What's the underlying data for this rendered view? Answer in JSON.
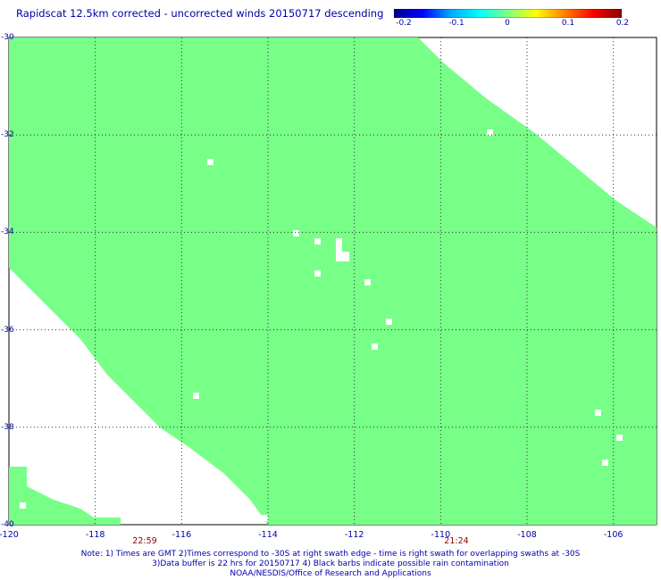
{
  "title": "Rapidscat 12.5km corrected - uncorrected winds 20150717 descending",
  "colorbar": {
    "ticks": [
      "-0.2",
      "-0.1",
      "0",
      "0.1",
      "0.2"
    ],
    "colors": [
      "#00008b",
      "#0000ff",
      "#00aaff",
      "#00ffff",
      "#7fff7f",
      "#ffff00",
      "#ff8000",
      "#ff0000",
      "#8b0000"
    ]
  },
  "map": {
    "lat_ticks": [
      "-30",
      "-32",
      "-34",
      "-36",
      "-38",
      "-40"
    ],
    "lon_ticks": [
      "-120",
      "-118",
      "-116",
      "-114",
      "-112",
      "-110",
      "-108",
      "-106"
    ],
    "lon_range": [
      -120,
      -105
    ],
    "lat_range": [
      -30,
      -40
    ],
    "fill_color": "#77ff88",
    "grid_color": "#333333"
  },
  "times": [
    {
      "label": "22:59",
      "lon": -117.2
    },
    {
      "label": "21:24",
      "lon": -109.6
    }
  ],
  "notes": [
    "Note: 1) Times are GMT 2)Times correspond to -30S at right swath edge - time is right swath for overlapping swaths at -30S",
    "3)Data buffer is 22 hrs for 20150717 4) Black barbs indicate possible rain contamination",
    "NOAA/NESDIS/Office of Research and Applications"
  ]
}
